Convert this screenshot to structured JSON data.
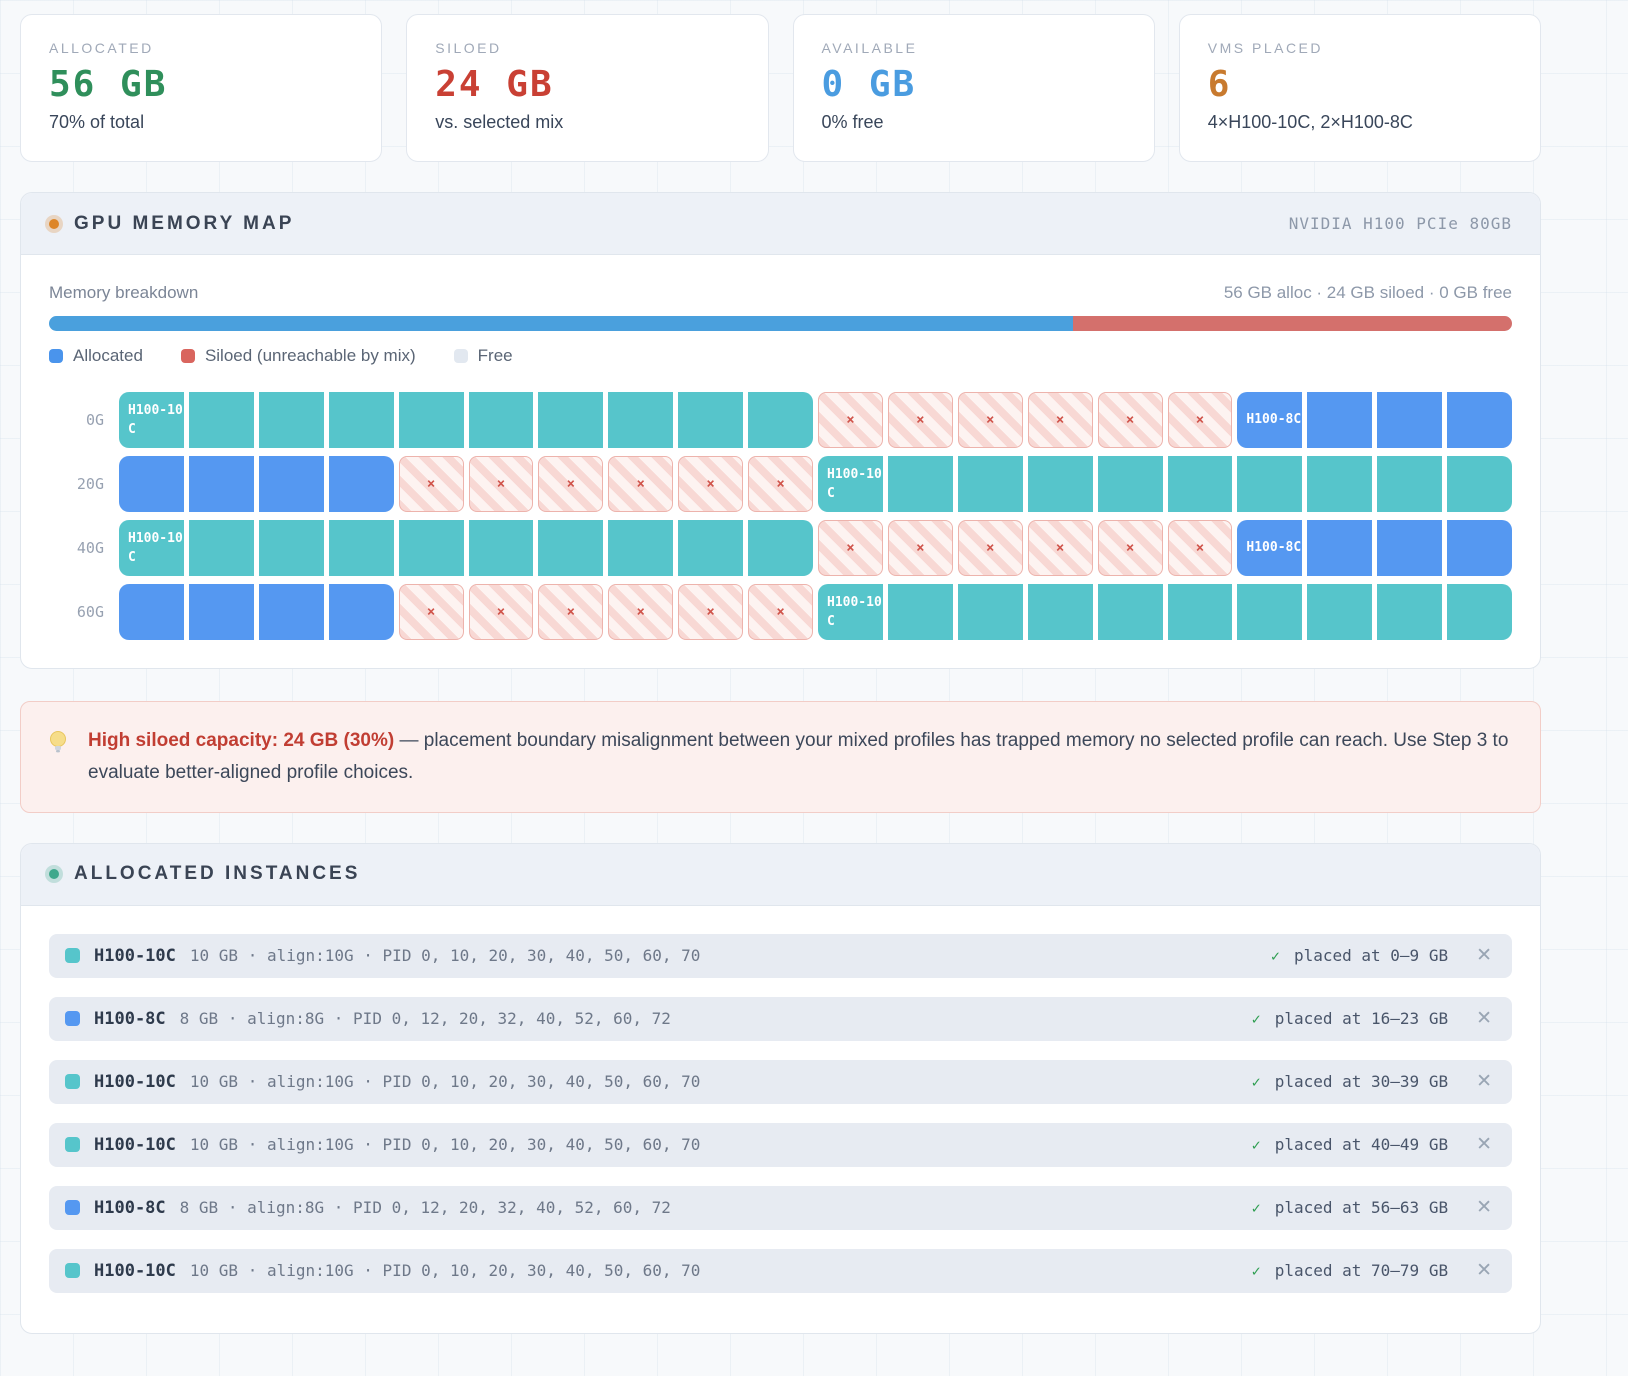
{
  "colors": {
    "teal": "#56c5cb",
    "blue": "#5598f1",
    "bar_alloc": "#4aa0dd",
    "bar_siloed": "#d4706c",
    "bar_free": "#e7ecf2",
    "legend_alloc": "#4a94ec",
    "legend_siloed": "#d9655e",
    "legend_free": "#e2e8f0",
    "stat_allocated": "#2f8f5b",
    "stat_siloed": "#c94034",
    "stat_available": "#4a9ce0",
    "stat_vms": "#c87a2e"
  },
  "stats": [
    {
      "label": "ALLOCATED",
      "value": "56 GB",
      "sub": "70% of total",
      "color_key": "stat_allocated"
    },
    {
      "label": "SILOED",
      "value": "24 GB",
      "sub": "vs. selected mix",
      "color_key": "stat_siloed"
    },
    {
      "label": "AVAILABLE",
      "value": "0 GB",
      "sub": "0% free",
      "color_key": "stat_available"
    },
    {
      "label": "VMS PLACED",
      "value": "6",
      "sub": "4×H100-10C, 2×H100-8C",
      "color_key": "stat_vms"
    }
  ],
  "memory_map": {
    "title": "GPU MEMORY MAP",
    "device": "NVIDIA H100 PCIe 80GB",
    "breakdown_label": "Memory breakdown",
    "breakdown_summary": "56 GB alloc · 24 GB siloed · 0 GB free",
    "bar": {
      "alloc_pct": 70,
      "siloed_pct": 30,
      "free_pct": 0
    },
    "legend": [
      {
        "label": "Allocated",
        "color_key": "legend_alloc"
      },
      {
        "label": "Siloed (unreachable by mix)",
        "color_key": "legend_siloed"
      },
      {
        "label": "Free",
        "color_key": "legend_free"
      }
    ],
    "siloed_mark": "×",
    "rows": [
      {
        "label": "0G",
        "runs": [
          {
            "type": "vm",
            "variant": "teal",
            "label": "H100-10C",
            "cells": 10
          },
          {
            "type": "siloed",
            "cells": 6
          },
          {
            "type": "vm",
            "variant": "blue",
            "label": "H100-8C",
            "cells": 4
          }
        ]
      },
      {
        "label": "20G",
        "runs": [
          {
            "type": "vm",
            "variant": "blue",
            "label": "",
            "cells": 4
          },
          {
            "type": "siloed",
            "cells": 6
          },
          {
            "type": "vm",
            "variant": "teal",
            "label": "H100-10C",
            "cells": 10
          }
        ]
      },
      {
        "label": "40G",
        "runs": [
          {
            "type": "vm",
            "variant": "teal",
            "label": "H100-10C",
            "cells": 10
          },
          {
            "type": "siloed",
            "cells": 6
          },
          {
            "type": "vm",
            "variant": "blue",
            "label": "H100-8C",
            "cells": 4
          }
        ]
      },
      {
        "label": "60G",
        "runs": [
          {
            "type": "vm",
            "variant": "blue",
            "label": "",
            "cells": 4
          },
          {
            "type": "siloed",
            "cells": 6
          },
          {
            "type": "vm",
            "variant": "teal",
            "label": "H100-10C",
            "cells": 10
          }
        ]
      }
    ]
  },
  "warning": {
    "highlight": "High siloed capacity: 24 GB (30%)",
    "text": " — placement boundary misalignment between your mixed profiles has trapped memory no selected profile can reach. Use Step 3 to evaluate better-aligned profile choices."
  },
  "instances": {
    "title": "ALLOCATED INSTANCES",
    "check_glyph": "✓",
    "close_glyph": "✕",
    "rows": [
      {
        "variant": "teal",
        "name": "H100-10C",
        "meta": "10 GB · align:10G · PID 0, 10, 20, 30, 40, 50, 60, 70",
        "placed": "placed at 0–9 GB"
      },
      {
        "variant": "blue",
        "name": "H100-8C",
        "meta": "8 GB · align:8G · PID 0, 12, 20, 32, 40, 52, 60, 72",
        "placed": "placed at 16–23 GB"
      },
      {
        "variant": "teal",
        "name": "H100-10C",
        "meta": "10 GB · align:10G · PID 0, 10, 20, 30, 40, 50, 60, 70",
        "placed": "placed at 30–39 GB"
      },
      {
        "variant": "teal",
        "name": "H100-10C",
        "meta": "10 GB · align:10G · PID 0, 10, 20, 30, 40, 50, 60, 70",
        "placed": "placed at 40–49 GB"
      },
      {
        "variant": "blue",
        "name": "H100-8C",
        "meta": "8 GB · align:8G · PID 0, 12, 20, 32, 40, 52, 60, 72",
        "placed": "placed at 56–63 GB"
      },
      {
        "variant": "teal",
        "name": "H100-10C",
        "meta": "10 GB · align:10G · PID 0, 10, 20, 30, 40, 50, 60, 70",
        "placed": "placed at 70–79 GB"
      }
    ]
  }
}
